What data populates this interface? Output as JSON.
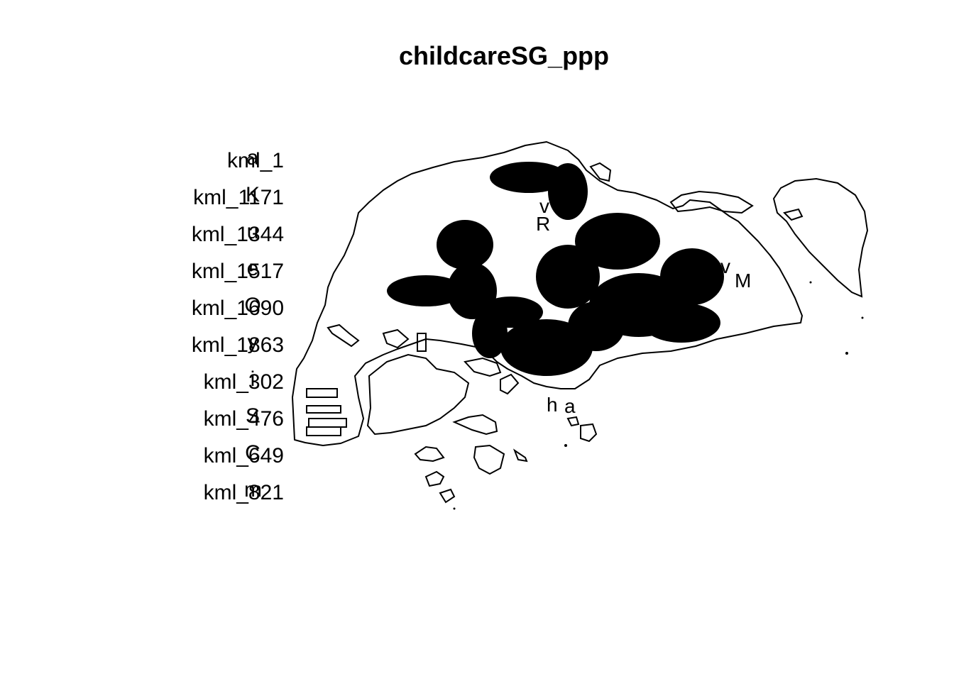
{
  "title": "childcareSG_ppp",
  "legend": {
    "items": [
      {
        "mark": "kml_1",
        "symbol": "a"
      },
      {
        "mark": "kml_1171",
        "symbol": "K"
      },
      {
        "mark": "kml_1344",
        "symbol": "u"
      },
      {
        "mark": "kml_1517",
        "symbol": "e"
      },
      {
        "mark": "kml_1690",
        "symbol": "O"
      },
      {
        "mark": "kml_1863",
        "symbol": "y"
      },
      {
        "mark": "kml_302",
        "symbol": "i"
      },
      {
        "mark": "kml_476",
        "symbol": "S"
      },
      {
        "mark": "kml_649",
        "symbol": "C"
      },
      {
        "mark": "kml_821",
        "symbol": "m"
      }
    ]
  },
  "colors": {
    "ink": "#000000",
    "background": "#ffffff"
  }
}
